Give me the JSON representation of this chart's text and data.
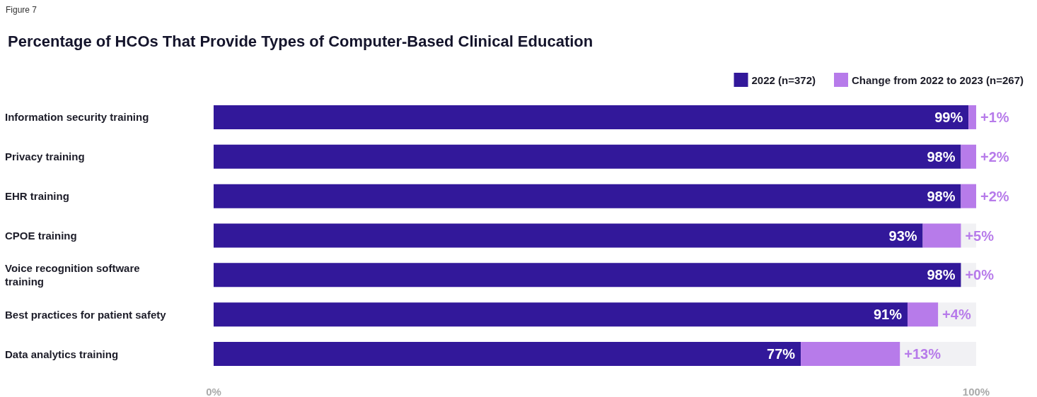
{
  "chart_data": {
    "type": "bar",
    "orientation": "horizontal",
    "stacked": true,
    "title": "Percentage of HCOs That Provide Types of Computer-Based Clinical Education",
    "annotations": [
      "Figure 7"
    ],
    "categories": [
      "Information security training",
      "Privacy training",
      "EHR training",
      "CPOE training",
      "Voice recognition software training",
      "Best practices for patient safety",
      "Data analytics training"
    ],
    "series": [
      {
        "name": "2022 (n=372)",
        "color": "#32189a",
        "values": [
          99,
          98,
          98,
          93,
          98,
          91,
          77
        ],
        "value_labels": [
          "99%",
          "98%",
          "98%",
          "93%",
          "98%",
          "91%",
          "77%"
        ]
      },
      {
        "name": "Change from 2022 to 2023 (n=267)",
        "color": "#b77bea",
        "values": [
          1,
          2,
          2,
          5,
          0,
          4,
          13
        ],
        "value_labels": [
          "+1%",
          "+2%",
          "+2%",
          "+5%",
          "+0%",
          "+4%",
          "+13%"
        ]
      }
    ],
    "xlim": [
      0,
      100
    ],
    "xticks": [
      {
        "value": 0,
        "label": "0%"
      },
      {
        "value": 100,
        "label": "100%"
      }
    ],
    "grid": false,
    "legend": "top right"
  }
}
